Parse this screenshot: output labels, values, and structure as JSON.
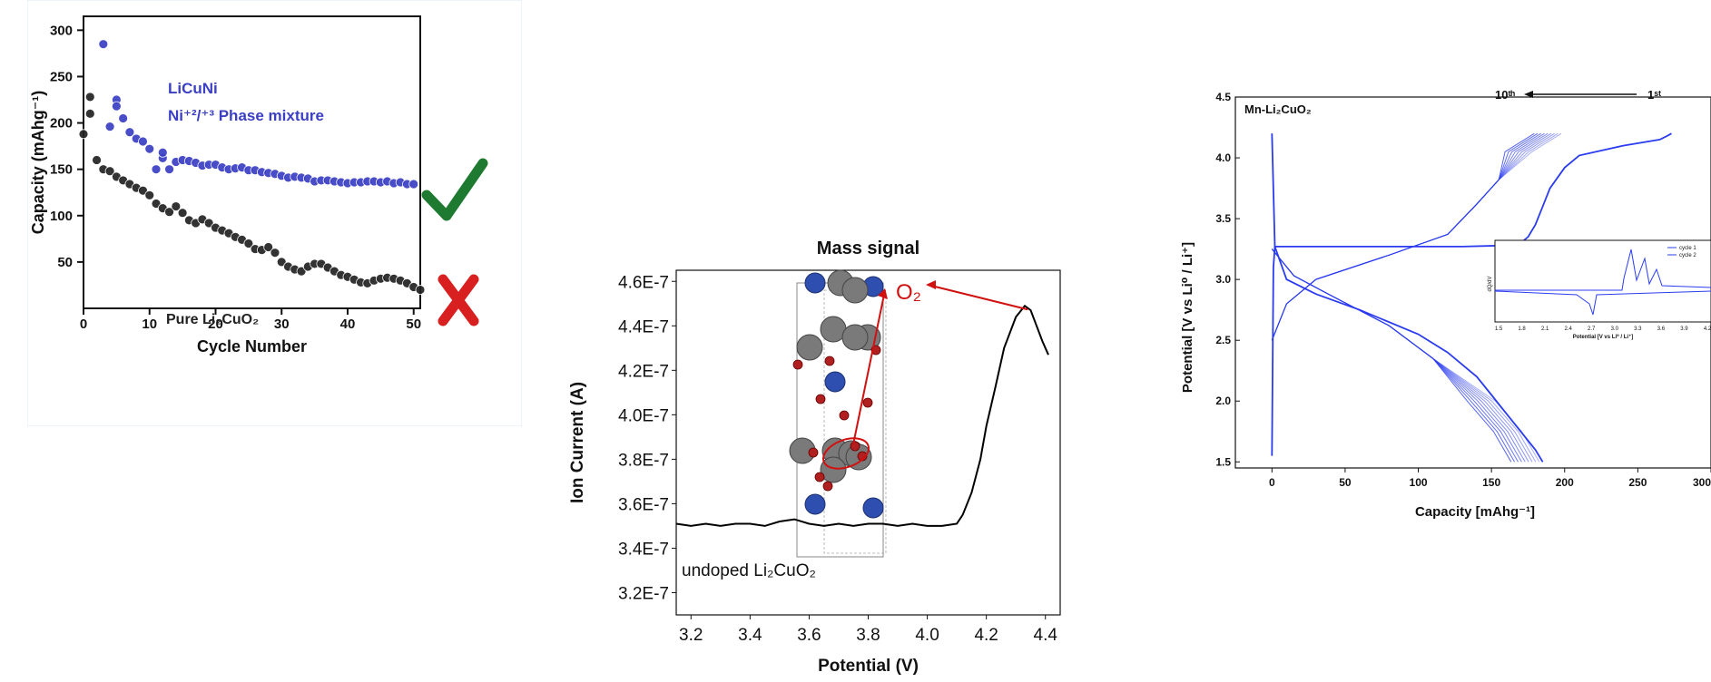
{
  "chart_data": [
    {
      "type": "scatter",
      "xlabel": "Cycle Number",
      "ylabel": "Capacity (mAhg⁻¹)",
      "xlim": [
        0,
        51
      ],
      "ylim": [
        0,
        315
      ],
      "xticks": [
        "0",
        "10",
        "20",
        "30",
        "40",
        "50"
      ],
      "yticks": [
        "50",
        "100",
        "150",
        "200",
        "250",
        "300"
      ],
      "annotations": [
        "LiCuNi",
        "Ni⁺²/⁺³ Phase mixture",
        "Pure Li₂CuO₂"
      ],
      "colors": {
        "blue": "#3a3fc4",
        "black": "#222222",
        "check": "#1e7a30",
        "cross": "#d92020"
      },
      "series": [
        {
          "x": [
            3,
            4,
            5,
            5,
            6,
            7,
            8,
            9,
            10,
            11,
            12,
            12,
            13,
            14,
            15,
            16,
            17,
            18,
            19,
            20,
            21,
            22,
            23,
            24,
            25,
            26,
            27,
            28,
            29,
            30,
            31,
            32,
            33,
            34,
            35,
            36,
            37,
            38,
            39,
            40,
            41,
            42,
            43,
            44,
            45,
            46,
            47,
            48,
            49,
            50
          ],
          "values": [
            285,
            196,
            225,
            218,
            205,
            190,
            183,
            180,
            172,
            150,
            162,
            168,
            150,
            158,
            160,
            159,
            157,
            154,
            155,
            155,
            152,
            150,
            151,
            152,
            149,
            149,
            147,
            146,
            145,
            143,
            141,
            142,
            141,
            140,
            137,
            138,
            138,
            137,
            136,
            135,
            136,
            136,
            137,
            137,
            136,
            137,
            135,
            136,
            134,
            134
          ]
        },
        {
          "x": [
            1,
            2,
            3,
            4,
            5,
            6,
            7,
            8,
            9,
            10,
            11,
            12,
            13,
            14,
            15,
            16,
            17,
            18,
            19,
            20,
            21,
            22,
            23,
            24,
            25,
            26,
            27,
            28,
            29,
            30,
            31,
            32,
            33,
            34,
            35,
            36,
            37,
            38,
            39,
            40,
            41,
            42,
            43,
            44,
            45,
            46,
            47,
            48,
            49,
            50,
            51
          ],
          "values": [
            228,
            160,
            150,
            148,
            142,
            138,
            134,
            130,
            127,
            122,
            113,
            108,
            104,
            110,
            103,
            95,
            92,
            96,
            92,
            87,
            84,
            81,
            77,
            74,
            70,
            64,
            63,
            66,
            60,
            50,
            45,
            42,
            40,
            45,
            48,
            48,
            44,
            40,
            36,
            34,
            31,
            28,
            27,
            30,
            32,
            33,
            32,
            30,
            27,
            23,
            20
          ]
        },
        {
          "x": [
            0,
            1
          ],
          "values": [
            188,
            210
          ]
        }
      ]
    },
    {
      "type": "line",
      "title": "Mass signal",
      "xlabel": "Potential (V)",
      "ylabel": "Ion Current (A)",
      "xlim": [
        3.15,
        4.45
      ],
      "ylim": [
        3.1e-07,
        4.65e-07
      ],
      "xticks": [
        "3.2",
        "3.4",
        "3.6",
        "3.8",
        "4.0",
        "4.2",
        "4.4"
      ],
      "yticks": [
        "3.2E-7",
        "3.4E-7",
        "3.6E-7",
        "3.8E-7",
        "4.0E-7",
        "4.2E-7",
        "4.4E-7",
        "4.6E-7"
      ],
      "annotations": [
        "undoped Li₂CuO₂",
        "O₂"
      ],
      "colors": {
        "line": "#000000",
        "arrow": "#d11010",
        "li": "#7a7a7a",
        "cu": "#2f4fb0",
        "o": "#b02020"
      },
      "series": [
        {
          "x": [
            3.15,
            3.2,
            3.25,
            3.3,
            3.35,
            3.4,
            3.45,
            3.5,
            3.55,
            3.6,
            3.65,
            3.7,
            3.75,
            3.8,
            3.85,
            3.9,
            3.95,
            4.0,
            4.05,
            4.1,
            4.12,
            4.15,
            4.18,
            4.2,
            4.23,
            4.26,
            4.3,
            4.33,
            4.35,
            4.37,
            4.39,
            4.41
          ],
          "values": [
            3.51e-07,
            3.5e-07,
            3.51e-07,
            3.5e-07,
            3.51e-07,
            3.51e-07,
            3.5e-07,
            3.52e-07,
            3.53e-07,
            3.51e-07,
            3.5e-07,
            3.51e-07,
            3.5e-07,
            3.51e-07,
            3.51e-07,
            3.5e-07,
            3.51e-07,
            3.5e-07,
            3.5e-07,
            3.51e-07,
            3.55e-07,
            3.65e-07,
            3.8e-07,
            3.95e-07,
            4.12e-07,
            4.3e-07,
            4.44e-07,
            4.49e-07,
            4.47e-07,
            4.4e-07,
            4.33e-07,
            4.27e-07
          ]
        }
      ]
    },
    {
      "type": "line",
      "xlabel": "Capacity [mAhg⁻¹]",
      "ylabel": "Potential [V vs Li⁰ / Li⁺]",
      "xlim": [
        -25,
        300
      ],
      "ylim": [
        1.45,
        4.5
      ],
      "xticks": [
        "0",
        "50",
        "100",
        "150",
        "200",
        "250",
        "300"
      ],
      "yticks": [
        "1.5",
        "2.0",
        "2.5",
        "3.0",
        "3.5",
        "4.0",
        "4.5"
      ],
      "annotations": [
        "Mn-Li₂CuO₂",
        "10ᵗʰ",
        "1ˢᵗ"
      ],
      "inset": {
        "xlabel": "Potential [V vs Li⁰ / Li⁺]",
        "ylabel": "dQ/dV",
        "xticks": [
          "1.5",
          "1.8",
          "2.1",
          "2.4",
          "2.7",
          "3.0",
          "3.3",
          "3.6",
          "3.9",
          "4.2"
        ],
        "legend": [
          "cycle 1",
          "cycle 2"
        ]
      },
      "colors": {
        "line": "#2b3cf0"
      },
      "series": [
        {
          "x": [
            0,
            2,
            10,
            30,
            60,
            100,
            120,
            140,
            150,
            160,
            170,
            180,
            185
          ],
          "values": [
            4.2,
            3.27,
            3.0,
            2.88,
            2.75,
            2.55,
            2.4,
            2.2,
            2.05,
            1.9,
            1.75,
            1.6,
            1.5
          ]
        },
        {
          "x": [
            0,
            1,
            2,
            60,
            100,
            130,
            160,
            170,
            175,
            180,
            185,
            190,
            200,
            210,
            240,
            265,
            270,
            273
          ],
          "values": [
            1.55,
            3.1,
            3.27,
            3.27,
            3.27,
            3.27,
            3.28,
            3.3,
            3.35,
            3.45,
            3.6,
            3.75,
            3.92,
            4.02,
            4.1,
            4.15,
            4.18,
            4.2
          ]
        }
      ]
    }
  ]
}
